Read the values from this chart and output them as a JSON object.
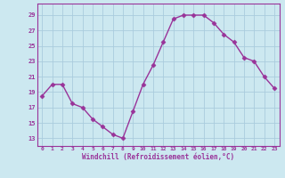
{
  "x": [
    0,
    1,
    2,
    3,
    4,
    5,
    6,
    7,
    8,
    9,
    10,
    11,
    12,
    13,
    14,
    15,
    16,
    17,
    18,
    19,
    20,
    21,
    22,
    23
  ],
  "y": [
    18.5,
    20.0,
    20.0,
    17.5,
    17.0,
    15.5,
    14.5,
    13.5,
    13.0,
    16.5,
    20.0,
    22.5,
    25.5,
    28.5,
    29.0,
    29.0,
    29.0,
    28.0,
    26.5,
    25.5,
    23.5,
    23.0,
    21.0,
    19.5
  ],
  "line_color": "#993399",
  "marker": "D",
  "markersize": 2.5,
  "linewidth": 1.0,
  "bg_color": "#cce8f0",
  "grid_color": "#aaccdd",
  "xlabel": "Windchill (Refroidissement éolien,°C)",
  "xlabel_color": "#993399",
  "ylabel_ticks": [
    13,
    15,
    17,
    19,
    21,
    23,
    25,
    27,
    29
  ],
  "xtick_labels": [
    "0",
    "1",
    "2",
    "3",
    "4",
    "5",
    "6",
    "7",
    "8",
    "9",
    "10",
    "11",
    "12",
    "13",
    "14",
    "15",
    "16",
    "17",
    "18",
    "19",
    "20",
    "21",
    "22",
    "23"
  ],
  "ylim": [
    12.0,
    30.5
  ],
  "xlim": [
    -0.5,
    23.5
  ],
  "tick_color": "#993399",
  "spine_color": "#993399"
}
